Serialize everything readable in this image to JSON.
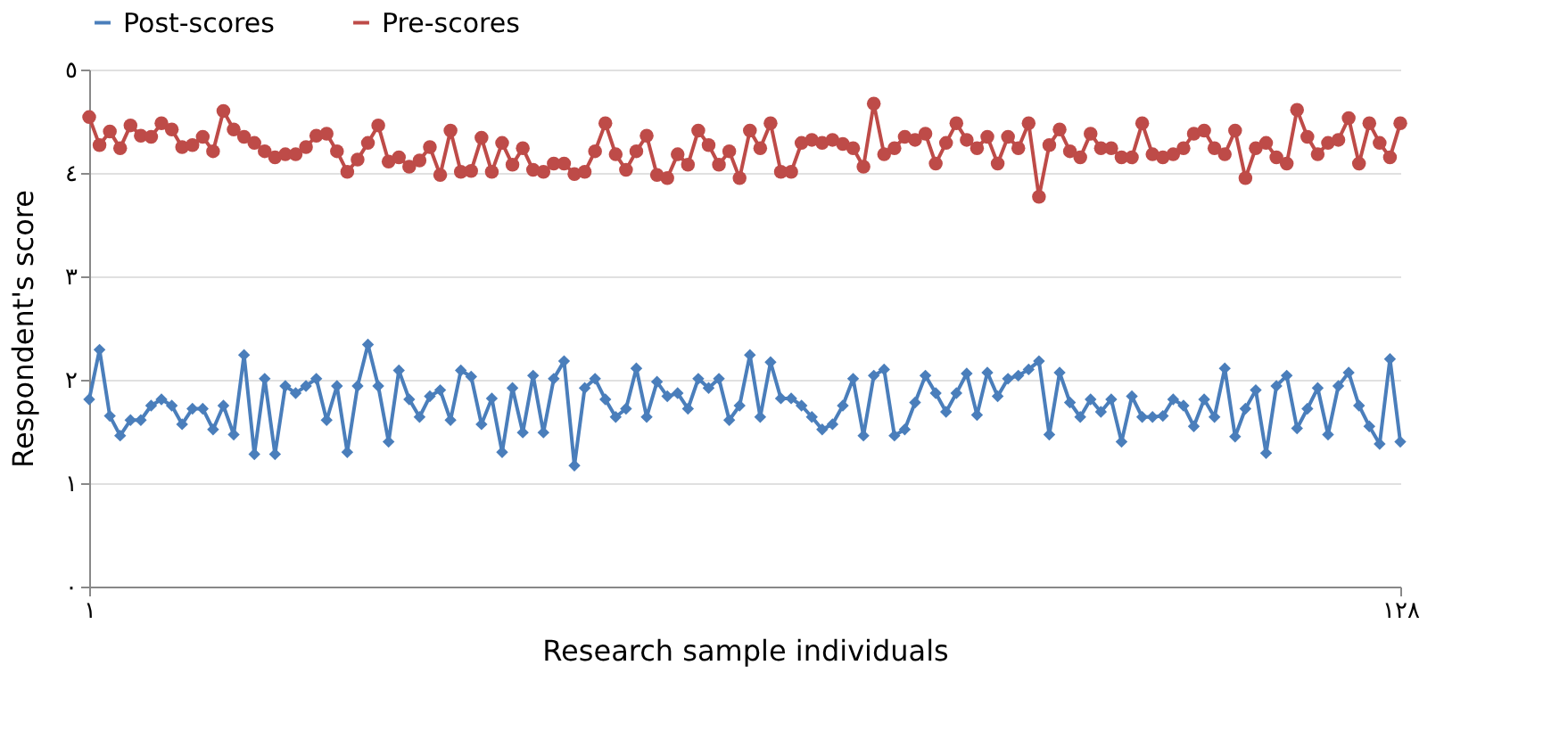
{
  "chart_data": {
    "type": "line",
    "xlabel": "Research sample individuals",
    "ylabel": "Respondent's score",
    "x": [
      1,
      2,
      3,
      4,
      5,
      6,
      7,
      8,
      9,
      10,
      11,
      12,
      13,
      14,
      15,
      16,
      17,
      18,
      19,
      20,
      21,
      22,
      23,
      24,
      25,
      26,
      27,
      28,
      29,
      30,
      31,
      32,
      33,
      34,
      35,
      36,
      37,
      38,
      39,
      40,
      41,
      42,
      43,
      44,
      45,
      46,
      47,
      48,
      49,
      50,
      51,
      52,
      53,
      54,
      55,
      56,
      57,
      58,
      59,
      60,
      61,
      62,
      63,
      64,
      65,
      66,
      67,
      68,
      69,
      70,
      71,
      72,
      73,
      74,
      75,
      76,
      77,
      78,
      79,
      80,
      81,
      82,
      83,
      84,
      85,
      86,
      87,
      88,
      89,
      90,
      91,
      92,
      93,
      94,
      95,
      96,
      97,
      98,
      99,
      100,
      101,
      102,
      103,
      104,
      105,
      106,
      107,
      108,
      109,
      110,
      111,
      112,
      113,
      114,
      115,
      116,
      117,
      118,
      119,
      120,
      121,
      122,
      123,
      124,
      125,
      126,
      127,
      128
    ],
    "series": [
      {
        "name": "Post-scores",
        "color": "#4a7ebb",
        "marker": "diamond",
        "values": [
          1.81,
          2.29,
          1.65,
          1.46,
          1.61,
          1.61,
          1.75,
          1.81,
          1.75,
          1.57,
          1.72,
          1.72,
          1.52,
          1.75,
          1.47,
          2.24,
          1.28,
          2.01,
          1.28,
          1.94,
          1.87,
          1.94,
          2.01,
          1.61,
          1.94,
          1.3,
          1.94,
          2.34,
          1.94,
          1.4,
          2.09,
          1.81,
          1.64,
          1.84,
          1.9,
          1.61,
          2.09,
          2.03,
          1.57,
          1.82,
          1.3,
          1.92,
          1.49,
          2.04,
          1.49,
          2.01,
          2.18,
          1.17,
          1.92,
          2.01,
          1.81,
          1.64,
          1.72,
          2.11,
          1.64,
          1.98,
          1.84,
          1.87,
          1.72,
          2.01,
          1.92,
          2.01,
          1.61,
          1.75,
          2.24,
          1.64,
          2.17,
          1.82,
          1.82,
          1.75,
          1.64,
          1.52,
          1.57,
          1.75,
          2.01,
          1.46,
          2.04,
          2.1,
          1.46,
          1.52,
          1.78,
          2.04,
          1.87,
          1.69,
          1.87,
          2.06,
          1.66,
          2.07,
          1.84,
          2.01,
          2.04,
          2.1,
          2.18,
          1.47,
          2.07,
          1.78,
          1.64,
          1.81,
          1.69,
          1.81,
          1.4,
          1.84,
          1.64,
          1.64,
          1.65,
          1.81,
          1.75,
          1.55,
          1.81,
          1.64,
          2.11,
          1.45,
          1.72,
          1.9,
          1.29,
          1.94,
          2.04,
          1.53,
          1.72,
          1.92,
          1.47,
          1.94,
          2.07,
          1.75,
          1.55,
          1.38,
          2.2,
          1.4
        ]
      },
      {
        "name": "Pre-scores",
        "color": "#be4b48",
        "marker": "circle",
        "values": [
          4.54,
          4.27,
          4.4,
          4.24,
          4.46,
          4.36,
          4.35,
          4.48,
          4.42,
          4.25,
          4.27,
          4.35,
          4.21,
          4.6,
          4.42,
          4.35,
          4.29,
          4.21,
          4.15,
          4.18,
          4.18,
          4.25,
          4.36,
          4.38,
          4.21,
          4.01,
          4.13,
          4.29,
          4.46,
          4.11,
          4.15,
          4.06,
          4.12,
          4.25,
          3.98,
          4.41,
          4.01,
          4.02,
          4.34,
          4.01,
          4.29,
          4.08,
          4.24,
          4.03,
          4.01,
          4.09,
          4.09,
          3.99,
          4.01,
          4.21,
          4.48,
          4.18,
          4.03,
          4.21,
          4.36,
          3.98,
          3.95,
          4.18,
          4.08,
          4.41,
          4.27,
          4.08,
          4.21,
          3.95,
          4.41,
          4.24,
          4.48,
          4.01,
          4.01,
          4.29,
          4.32,
          4.29,
          4.32,
          4.28,
          4.24,
          4.06,
          4.67,
          4.18,
          4.24,
          4.35,
          4.32,
          4.38,
          4.09,
          4.29,
          4.48,
          4.32,
          4.24,
          4.35,
          4.09,
          4.35,
          4.24,
          4.48,
          3.77,
          4.27,
          4.42,
          4.21,
          4.15,
          4.38,
          4.24,
          4.24,
          4.15,
          4.15,
          4.48,
          4.18,
          4.15,
          4.18,
          4.24,
          4.38,
          4.41,
          4.24,
          4.18,
          4.41,
          3.95,
          4.24,
          4.29,
          4.15,
          4.09,
          4.61,
          4.35,
          4.18,
          4.29,
          4.32,
          4.53,
          4.09,
          4.48,
          4.29,
          4.15,
          4.48
        ]
      }
    ],
    "xlim": [
      1,
      128
    ],
    "xticks": [
      {
        "value": 1,
        "label": "١"
      },
      {
        "value": 128,
        "label": "١٢٨"
      }
    ],
    "ylim": [
      0,
      5
    ],
    "yticks": [
      {
        "value": 0,
        "label": "٠"
      },
      {
        "value": 1,
        "label": "١"
      },
      {
        "value": 2,
        "label": "٢"
      },
      {
        "value": 3,
        "label": "٣"
      },
      {
        "value": 4,
        "label": "٤"
      },
      {
        "value": 5,
        "label": "٥"
      }
    ],
    "grid": "y",
    "legend": "top"
  }
}
